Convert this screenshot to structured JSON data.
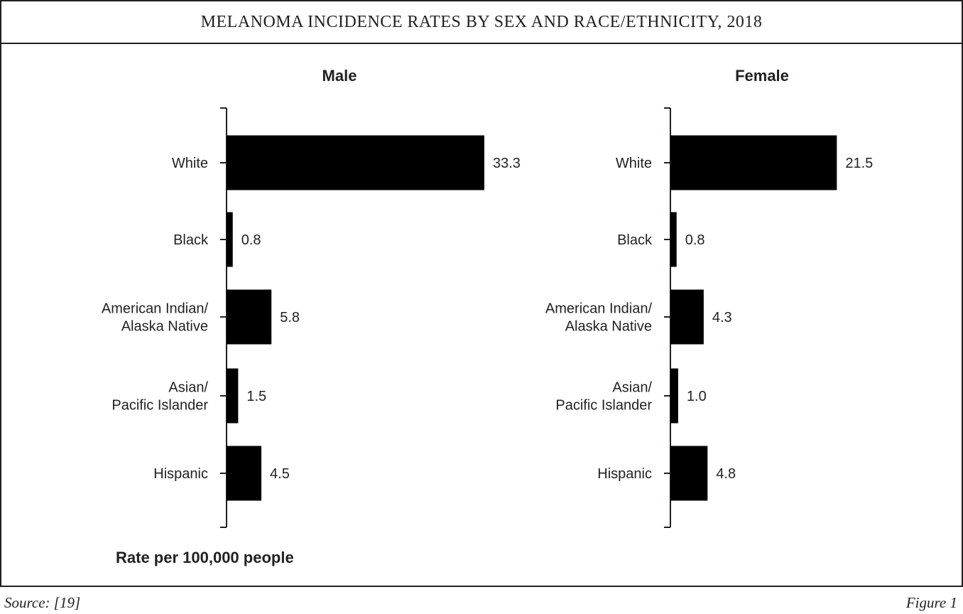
{
  "title": "MELANOMA INCIDENCE RATES BY SEX AND RACE/ETHNICITY, 2018",
  "footer": {
    "source": "Source: [19]",
    "figure": "Figure 1"
  },
  "unit_label": "Rate per 100,000 people",
  "bar_color": "#000000",
  "chart_data": [
    {
      "type": "bar",
      "orientation": "horizontal",
      "title": "Male",
      "categories": [
        "White",
        "Black",
        "American Indian/\nAlaska Native",
        "Asian/\nPacific Islander",
        "Hispanic"
      ],
      "values": [
        33.3,
        0.8,
        5.8,
        1.5,
        4.5
      ],
      "data_labels": [
        "33.3",
        "0.8",
        "5.8",
        "1.5",
        "4.5"
      ],
      "xlabel": "Rate per 100,000 people",
      "xlim": [
        0,
        40
      ]
    },
    {
      "type": "bar",
      "orientation": "horizontal",
      "title": "Female",
      "categories": [
        "White",
        "Black",
        "American Indian/\nAlaska Native",
        "Asian/\nPacific Islander",
        "Hispanic"
      ],
      "values": [
        21.5,
        0.8,
        4.3,
        1.0,
        4.8
      ],
      "data_labels": [
        "21.5",
        "0.8",
        "4.3",
        "1.0",
        "4.8"
      ],
      "xlabel": "",
      "xlim": [
        0,
        40
      ]
    }
  ]
}
